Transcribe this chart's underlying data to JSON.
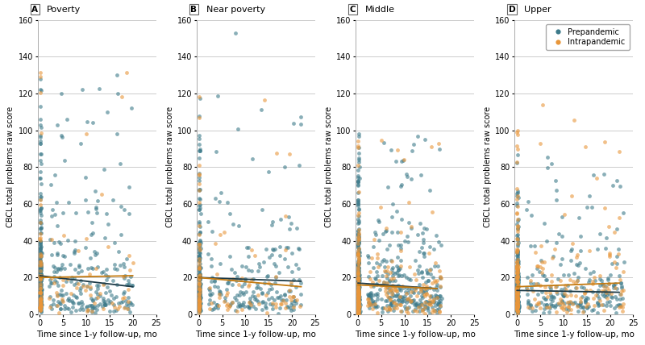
{
  "panels": [
    "A",
    "B",
    "C",
    "D"
  ],
  "panel_titles": [
    "Poverty",
    "Near poverty",
    "Middle",
    "Upper"
  ],
  "prepandemic_color": "#3d7a8a",
  "intrapandemic_color": "#e8963a",
  "prepandemic_line_color": "#1c3a47",
  "intrapandemic_line_color": "#c47a10",
  "marker_size": 12,
  "alpha_scatter": 0.6,
  "ylim": [
    0,
    160
  ],
  "xlim": [
    -0.5,
    25
  ],
  "yticks": [
    0,
    20,
    40,
    60,
    80,
    100,
    120,
    140,
    160
  ],
  "xticks": [
    0,
    5,
    10,
    15,
    20,
    25
  ],
  "xlabel": "Time since 1-y follow-up, mo",
  "ylabel": "CBCL total problems raw score",
  "legend_labels": [
    "Prepandemic",
    "Intrapandemic"
  ],
  "background_color": "#ffffff",
  "grid_color": "#cccccc",
  "panel_configs": {
    "A": {
      "pre_n": 500,
      "pre_x_max": 20,
      "pre_y_mean": 25,
      "pre_y_std": 28,
      "pre_seed": 100,
      "intra_n": 120,
      "intra_x_max": 0.3,
      "intra_y_mean": 22,
      "intra_y_std": 28,
      "intra_seed": 200,
      "pre_line_x": [
        0,
        20
      ],
      "pre_line_y": [
        21,
        15
      ],
      "intra_line_x": [
        0,
        20
      ],
      "intra_line_y": [
        20,
        21
      ]
    },
    "B": {
      "pre_n": 420,
      "pre_x_max": 22,
      "pre_y_mean": 22,
      "pre_y_std": 24,
      "pre_seed": 101,
      "intra_n": 130,
      "intra_x_max": 0.3,
      "intra_y_mean": 20,
      "intra_y_std": 25,
      "intra_seed": 201,
      "pre_line_x": [
        0,
        22
      ],
      "pre_line_y": [
        20,
        18
      ],
      "intra_line_x": [
        0,
        22
      ],
      "intra_line_y": [
        20,
        15
      ]
    },
    "C": {
      "pre_n": 650,
      "pre_x_max": 18,
      "pre_y_mean": 18,
      "pre_y_std": 20,
      "pre_seed": 102,
      "intra_n": 300,
      "intra_x_max": 0.3,
      "intra_y_mean": 16,
      "intra_y_std": 20,
      "intra_seed": 202,
      "pre_line_x": [
        0,
        17
      ],
      "pre_line_y": [
        17,
        14
      ],
      "intra_line_x": [
        0,
        17
      ],
      "intra_line_y": [
        16,
        14
      ]
    },
    "D": {
      "pre_n": 450,
      "pre_x_max": 23,
      "pre_y_mean": 16,
      "pre_y_std": 18,
      "pre_seed": 103,
      "intra_n": 280,
      "intra_x_max": 0.3,
      "intra_y_mean": 18,
      "intra_y_std": 20,
      "intra_seed": 203,
      "pre_line_x": [
        0,
        22
      ],
      "pre_line_y": [
        13,
        12
      ],
      "intra_line_x": [
        0,
        22
      ],
      "intra_line_y": [
        15,
        17
      ]
    }
  }
}
